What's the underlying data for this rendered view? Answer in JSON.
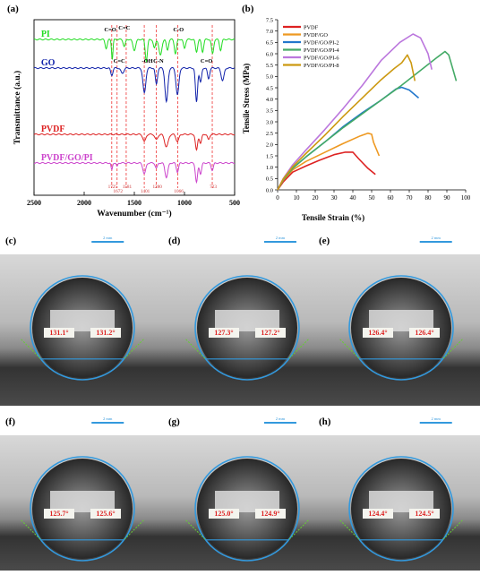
{
  "chart_data": [
    {
      "type": "line",
      "panel": "(a)",
      "xlabel": "Wavenumber (cm⁻¹)",
      "ylabel": "Transmittance (a.u.)",
      "xlim": [
        2500,
        500
      ],
      "xticks": [
        2500,
        2000,
        1500,
        1000,
        500
      ],
      "series": [
        {
          "name": "PI",
          "color": "#22dd22"
        },
        {
          "name": "GO",
          "color": "#1122aa"
        },
        {
          "name": "PVDF",
          "color": "#dd2222"
        },
        {
          "name": "PVDF/GO/PI",
          "color": "#cc44cc"
        }
      ],
      "peak_lines": [
        {
          "x": 1725,
          "label": "1725"
        },
        {
          "x": 1672,
          "label": "1672"
        },
        {
          "x": 1581,
          "label": "1581"
        },
        {
          "x": 1401,
          "label": "1401"
        },
        {
          "x": 1280,
          "label": "1280"
        },
        {
          "x": 1066,
          "label": "1066"
        },
        {
          "x": 723,
          "label": "723"
        }
      ],
      "annotations": [
        {
          "text": "C=O",
          "x": 1740,
          "series": "PI"
        },
        {
          "text": "C=C",
          "x": 1600,
          "series": "PI"
        },
        {
          "text": "C-O",
          "x": 1060,
          "series": "PI"
        },
        {
          "text": "C=C",
          "x": 1650,
          "series": "GO"
        },
        {
          "text": "-OH",
          "x": 1370,
          "series": "GO"
        },
        {
          "text": "C-N",
          "x": 1260,
          "series": "GO"
        },
        {
          "text": "C=O",
          "x": 780,
          "series": "GO"
        }
      ],
      "grid": false,
      "legend": "labels on curves"
    },
    {
      "type": "line",
      "panel": "(b)",
      "xlabel": "Tensile Strain (%)",
      "ylabel": "Tensile Stress (MPa)",
      "xlim": [
        0,
        100
      ],
      "ylim": [
        0,
        7.5
      ],
      "xticks": [
        0,
        10,
        20,
        30,
        40,
        50,
        60,
        70,
        80,
        90,
        100
      ],
      "yticks": [
        0.0,
        0.5,
        1.0,
        1.5,
        2.0,
        2.5,
        3.0,
        3.5,
        4.0,
        4.5,
        5.0,
        5.5,
        6.0,
        6.5,
        7.0,
        7.5
      ],
      "ytick_labels": [
        "0.0",
        "0.5",
        "1.0",
        "1.5",
        "2.0",
        "2.5",
        "3.0",
        "3.5",
        "4.0",
        "4.5",
        "5.0",
        "5.5",
        "6.0",
        "6.5",
        "7.0",
        "7.5"
      ],
      "series": [
        {
          "name": "PVDF",
          "color": "#dd2222",
          "x": [
            0,
            3,
            8,
            15,
            22,
            30,
            36,
            40,
            43,
            48,
            52
          ],
          "y": [
            0,
            0.35,
            0.78,
            1.05,
            1.3,
            1.55,
            1.66,
            1.66,
            1.38,
            0.95,
            0.68
          ]
        },
        {
          "name": "PVDF/GO",
          "color": "#ee9922",
          "x": [
            0,
            3,
            8,
            15,
            25,
            35,
            44,
            48,
            50,
            51,
            54
          ],
          "y": [
            0,
            0.42,
            0.88,
            1.25,
            1.65,
            2.05,
            2.38,
            2.5,
            2.45,
            2.1,
            1.5
          ]
        },
        {
          "name": "PVDF/GO/PI-2",
          "color": "#2277cc",
          "x": [
            0,
            3,
            8,
            15,
            25,
            35,
            45,
            55,
            63,
            66,
            70,
            75
          ],
          "y": [
            0,
            0.45,
            0.95,
            1.45,
            2.1,
            2.8,
            3.4,
            3.95,
            4.45,
            4.52,
            4.4,
            4.05
          ]
        },
        {
          "name": "PVDF/GO/PI-4",
          "color": "#44aa66",
          "x": [
            0,
            3,
            8,
            15,
            25,
            35,
            45,
            55,
            65,
            75,
            85,
            89,
            91,
            95
          ],
          "y": [
            0,
            0.45,
            0.95,
            1.45,
            2.1,
            2.75,
            3.35,
            3.95,
            4.55,
            5.2,
            5.85,
            6.1,
            5.95,
            4.8
          ]
        },
        {
          "name": "PVDF/GO/PI-6",
          "color": "#bb77dd",
          "x": [
            0,
            3,
            8,
            15,
            25,
            35,
            45,
            55,
            65,
            72,
            76,
            80,
            82
          ],
          "y": [
            0,
            0.5,
            1.1,
            1.75,
            2.65,
            3.6,
            4.6,
            5.7,
            6.5,
            6.87,
            6.7,
            6.0,
            5.3
          ]
        },
        {
          "name": "PVDF/GO/PI-8",
          "color": "#cc9911",
          "x": [
            0,
            3,
            8,
            15,
            25,
            35,
            45,
            55,
            62,
            66,
            69,
            71,
            73
          ],
          "y": [
            0,
            0.48,
            1.02,
            1.6,
            2.4,
            3.25,
            4.05,
            4.85,
            5.35,
            5.6,
            5.95,
            5.6,
            4.8
          ]
        }
      ],
      "grid": false,
      "legend": "top-left"
    }
  ],
  "panels": {
    "a": "(a)",
    "b": "(b)",
    "c": "(c)",
    "d": "(d)",
    "e": "(e)",
    "f": "(f)",
    "g": "(g)",
    "h": "(h)"
  },
  "scale_bar_label": "2 mm",
  "contact_angles": [
    {
      "panel": "c",
      "left": "131.1°",
      "right": "131.2°"
    },
    {
      "panel": "d",
      "left": "127.3°",
      "right": "127.2°"
    },
    {
      "panel": "e",
      "left": "126.4°",
      "right": "126.4°"
    },
    {
      "panel": "f",
      "left": "125.7°",
      "right": "125.6°"
    },
    {
      "panel": "g",
      "left": "125.0°",
      "right": "124.9°"
    },
    {
      "panel": "h",
      "left": "124.4°",
      "right": "124.5°"
    }
  ],
  "colors": {
    "circle": "#3399dd",
    "angle_label": "#dd2222",
    "tangent": "#66cc33",
    "peak_line": "#ee3333"
  }
}
